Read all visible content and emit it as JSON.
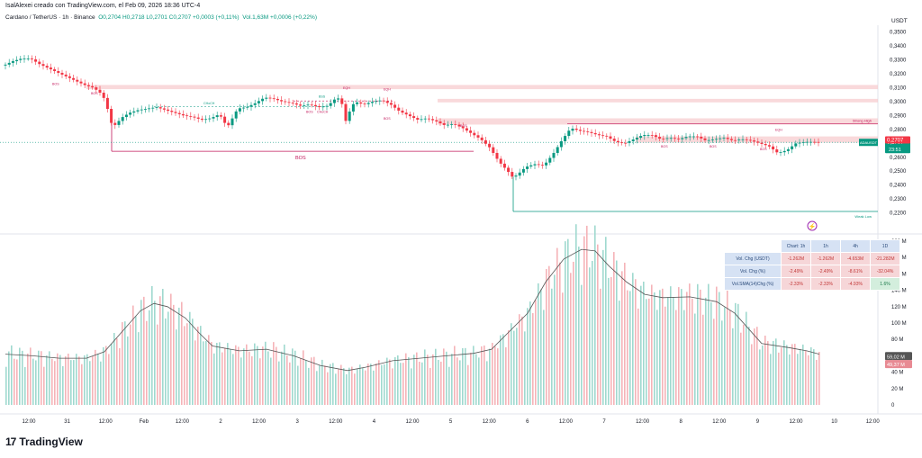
{
  "header": {
    "top_line": "IsalAlexei creado con TradingView.com, el Feb 09, 2026 18:36 UTC-4",
    "symbol_line": "Cardano / TetherUS · 1h · Binance",
    "ohlc": "O0,2704 H0,2718 L0,2701 C0,2707 +0,0003 (+0,11%)",
    "volume": "Vol.1,63M +0,0006 (+0,22%)",
    "currency": "USDT"
  },
  "brand": {
    "logo_mark": "17",
    "name": "TradingView"
  },
  "colors": {
    "up": "#089981",
    "down": "#F23645",
    "zone": "#F7C9CC",
    "accent": "#2962FF"
  },
  "chart_data": [
    {
      "type": "candlestick",
      "title": "Cardano / TetherUS · 1h · Binance",
      "ylim": [
        0.21,
        0.355
      ],
      "price_ticks": [
        "0,3500",
        "0,3400",
        "0,3300",
        "0,3200",
        "0,3100",
        "0,3000",
        "0,2900",
        "0,2800",
        "0,2700",
        "0,2600",
        "0,2500",
        "0,2400",
        "0,2300",
        "0,2200"
      ],
      "price_tick_values": [
        0.35,
        0.34,
        0.33,
        0.32,
        0.31,
        0.3,
        0.29,
        0.28,
        0.27,
        0.26,
        0.25,
        0.24,
        0.23,
        0.22
      ],
      "time_ticks": [
        "12:00",
        "31",
        "12:00",
        "Feb",
        "12:00",
        "2",
        "12:00",
        "3",
        "12:00",
        "4",
        "12:00",
        "5",
        "12:00",
        "6",
        "12:00",
        "7",
        "12:00",
        "8",
        "12:00",
        "9",
        "12:00",
        "10",
        "12:00"
      ],
      "close_path": [
        [
          0,
          0.326
        ],
        [
          10,
          0.329
        ],
        [
          20,
          0.331
        ],
        [
          30,
          0.331
        ],
        [
          40,
          0.327
        ],
        [
          50,
          0.324
        ],
        [
          60,
          0.321
        ],
        [
          70,
          0.318
        ],
        [
          80,
          0.315
        ],
        [
          90,
          0.312
        ],
        [
          100,
          0.31
        ],
        [
          110,
          0.305
        ],
        [
          115,
          0.296
        ],
        [
          120,
          0.284
        ],
        [
          125,
          0.283
        ],
        [
          130,
          0.288
        ],
        [
          140,
          0.292
        ],
        [
          150,
          0.294
        ],
        [
          160,
          0.295
        ],
        [
          170,
          0.296
        ],
        [
          180,
          0.294
        ],
        [
          190,
          0.292
        ],
        [
          200,
          0.29
        ],
        [
          210,
          0.289
        ],
        [
          220,
          0.287
        ],
        [
          230,
          0.288
        ],
        [
          240,
          0.291
        ],
        [
          245,
          0.285
        ],
        [
          250,
          0.283
        ],
        [
          255,
          0.289
        ],
        [
          260,
          0.295
        ],
        [
          270,
          0.296
        ],
        [
          280,
          0.299
        ],
        [
          290,
          0.303
        ],
        [
          300,
          0.302
        ],
        [
          310,
          0.3
        ],
        [
          320,
          0.299
        ],
        [
          330,
          0.297
        ],
        [
          340,
          0.298
        ],
        [
          350,
          0.296
        ],
        [
          360,
          0.297
        ],
        [
          370,
          0.303
        ],
        [
          375,
          0.301
        ],
        [
          380,
          0.286
        ],
        [
          385,
          0.294
        ],
        [
          390,
          0.3
        ],
        [
          400,
          0.298
        ],
        [
          410,
          0.3
        ],
        [
          420,
          0.301
        ],
        [
          430,
          0.298
        ],
        [
          440,
          0.293
        ],
        [
          450,
          0.29
        ],
        [
          460,
          0.287
        ],
        [
          470,
          0.288
        ],
        [
          480,
          0.286
        ],
        [
          490,
          0.283
        ],
        [
          500,
          0.284
        ],
        [
          510,
          0.281
        ],
        [
          520,
          0.277
        ],
        [
          530,
          0.273
        ],
        [
          540,
          0.267
        ],
        [
          550,
          0.257
        ],
        [
          560,
          0.25
        ],
        [
          565,
          0.246
        ],
        [
          570,
          0.247
        ],
        [
          580,
          0.253
        ],
        [
          590,
          0.255
        ],
        [
          600,
          0.254
        ],
        [
          610,
          0.262
        ],
        [
          620,
          0.272
        ],
        [
          630,
          0.281
        ],
        [
          640,
          0.279
        ],
        [
          650,
          0.278
        ],
        [
          660,
          0.276
        ],
        [
          670,
          0.275
        ],
        [
          680,
          0.271
        ],
        [
          690,
          0.27
        ],
        [
          700,
          0.273
        ],
        [
          710,
          0.276
        ],
        [
          720,
          0.276
        ],
        [
          730,
          0.273
        ],
        [
          740,
          0.274
        ],
        [
          750,
          0.273
        ],
        [
          760,
          0.275
        ],
        [
          770,
          0.275
        ],
        [
          780,
          0.272
        ],
        [
          790,
          0.273
        ],
        [
          800,
          0.274
        ],
        [
          810,
          0.272
        ],
        [
          820,
          0.273
        ],
        [
          830,
          0.272
        ],
        [
          840,
          0.27
        ],
        [
          850,
          0.268
        ],
        [
          860,
          0.263
        ],
        [
          870,
          0.265
        ],
        [
          880,
          0.27
        ],
        [
          890,
          0.271
        ],
        [
          900,
          0.271
        ],
        [
          904,
          0.2707
        ]
      ],
      "zones": [
        {
          "y_top": 0.312,
          "y_bot": 0.309,
          "x_start": 90
        },
        {
          "y_top": 0.302,
          "y_bot": 0.2995,
          "x_start": 480
        },
        {
          "y_top": 0.288,
          "y_bot": 0.2835,
          "x_start": 480
        },
        {
          "y_top": 0.275,
          "y_bot": 0.2705,
          "x_start": 700
        }
      ],
      "annotations": {
        "bos_label": "BOS",
        "bos_level": 0.2643,
        "choch_label": "CHoCH",
        "eqh_label": "EQH",
        "strong_high_label": "Strong High",
        "strong_high_level": 0.284,
        "weak_low_label": "Weak Low",
        "weak_low_level": 0.221,
        "small_labels": [
          "BOS",
          "BOS",
          "CHoCH",
          "BSS",
          "EQH",
          "EQH",
          "BOS",
          "CHoCH",
          "BOS",
          "BOS",
          "BOS",
          "BOS",
          "BOS",
          "EQH"
        ]
      },
      "current_price": {
        "symbol_tag": "ADAUSDT",
        "price": "0,2707",
        "countdown": "23:51",
        "value": 0.2707,
        "marker_price": "0,2707"
      }
    },
    {
      "type": "bar",
      "title": "Volume",
      "ylim": [
        0,
        200
      ],
      "unit": "M",
      "vol_ticks": [
        "200 M",
        "180 M",
        "160 M",
        "140 M",
        "120 M",
        "100 M",
        "80 M",
        "60 M",
        "40 M",
        "20 M",
        "0"
      ],
      "vol_tick_values": [
        200,
        180,
        160,
        140,
        120,
        100,
        80,
        60,
        40,
        20,
        0
      ],
      "sma_path": [
        [
          0,
          62
        ],
        [
          30,
          60
        ],
        [
          60,
          57
        ],
        [
          90,
          57
        ],
        [
          110,
          65
        ],
        [
          130,
          90
        ],
        [
          150,
          115
        ],
        [
          165,
          124
        ],
        [
          180,
          120
        ],
        [
          200,
          106
        ],
        [
          215,
          88
        ],
        [
          230,
          72
        ],
        [
          260,
          66
        ],
        [
          290,
          68
        ],
        [
          320,
          60
        ],
        [
          350,
          48
        ],
        [
          380,
          42
        ],
        [
          400,
          46
        ],
        [
          430,
          54
        ],
        [
          460,
          57
        ],
        [
          490,
          60
        ],
        [
          520,
          63
        ],
        [
          540,
          68
        ],
        [
          560,
          90
        ],
        [
          580,
          112
        ],
        [
          600,
          150
        ],
        [
          620,
          178
        ],
        [
          640,
          190
        ],
        [
          655,
          188
        ],
        [
          670,
          170
        ],
        [
          690,
          150
        ],
        [
          710,
          135
        ],
        [
          730,
          131
        ],
        [
          760,
          132
        ],
        [
          790,
          126
        ],
        [
          810,
          112
        ],
        [
          840,
          75
        ],
        [
          870,
          70
        ],
        [
          890,
          66
        ],
        [
          904,
          62
        ]
      ],
      "vol_labels": {
        "current_a": "59,02 M",
        "current_b": "49,37 M"
      },
      "vol_label_values": [
        59.02,
        49.37
      ],
      "stats_table": {
        "header": [
          "Chart: 1h",
          "1h",
          "4h",
          "1D"
        ],
        "rows": [
          {
            "label": "Vol. Chg (USDT)",
            "cells": [
              "-1.262M",
              "-1.262M",
              "-4.653M",
              "-21.282M"
            ],
            "signs": [
              "neg",
              "neg",
              "neg",
              "neg"
            ]
          },
          {
            "label": "Vol. Chg (%)",
            "cells": [
              "-2.49%",
              "-2.49%",
              "-8.61%",
              "-32.04%"
            ],
            "signs": [
              "neg",
              "neg",
              "neg",
              "neg"
            ]
          },
          {
            "label": "Vol.SMA(14)Chg (%)",
            "cells": [
              "-2.33%",
              "-2.33%",
              "-4.93%",
              "1.6%"
            ],
            "signs": [
              "neg",
              "neg",
              "neg",
              "pos"
            ]
          }
        ]
      }
    }
  ]
}
